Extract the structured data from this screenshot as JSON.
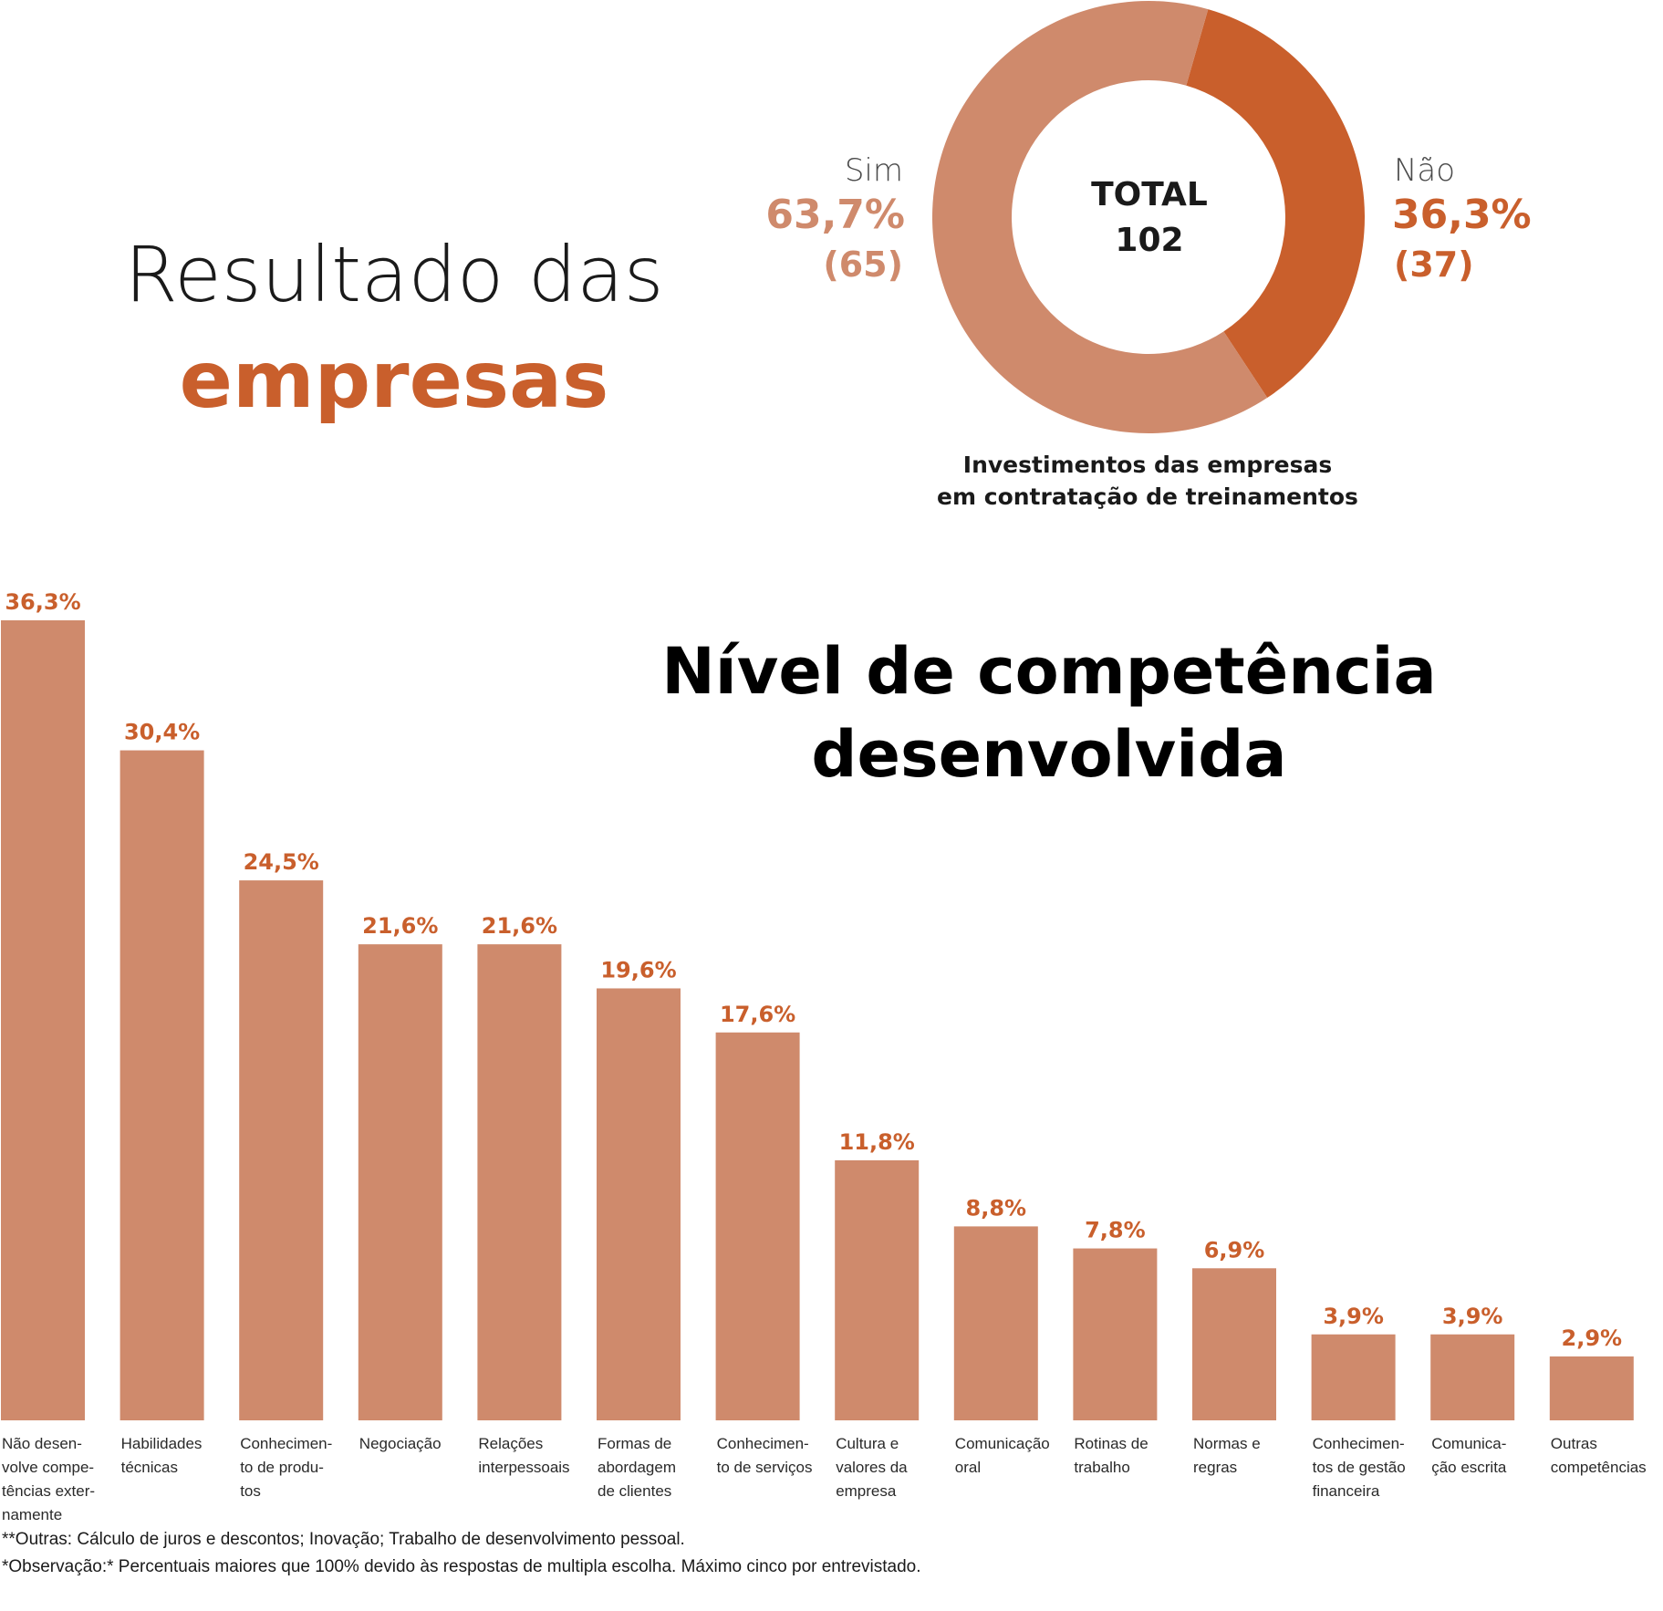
{
  "header": {
    "title_line1": "Resultado das",
    "title_line2": "empresas"
  },
  "donut": {
    "center_label": "TOTAL",
    "center_value": "102",
    "caption_line1": "Investimentos das empresas",
    "caption_line2": "em contratação de treinamentos",
    "colors": {
      "sim": "#cf8a6c",
      "nao": "#c95f2c"
    }
  },
  "bar_chart_heading": {
    "line1": "Nível de competência",
    "line2": "desenvolvida"
  },
  "chart_data": [
    {
      "type": "pie",
      "variant": "donut",
      "title": "Investimentos das empresas em contratação de treinamentos",
      "slices": [
        {
          "label": "Sim",
          "percent": 63.7,
          "percent_label": "63,7%",
          "count": 65,
          "count_label": "(65)",
          "color": "#cf8a6c"
        },
        {
          "label": "Não",
          "percent": 36.3,
          "percent_label": "36,3%",
          "count": 37,
          "count_label": "(37)",
          "color": "#c95f2c"
        }
      ],
      "total": 102
    },
    {
      "type": "bar",
      "title": "Nível de competência desenvolvida",
      "bar_color": "#cf8a6c",
      "label_color": "#c95f2c",
      "ylim": [
        0,
        36.3
      ],
      "categories": [
        [
          "Não desen-",
          "volve compe-",
          "tências exter-",
          "namente"
        ],
        [
          "Habilidades",
          "técnicas"
        ],
        [
          "Conhecimen-",
          "to de produ-",
          "tos"
        ],
        [
          "Negociação"
        ],
        [
          "Relações",
          "interpessoais"
        ],
        [
          "Formas de",
          "abordagem",
          "de clientes"
        ],
        [
          "Conhecimen-",
          "to de serviços"
        ],
        [
          "Cultura e",
          "valores da",
          "empresa"
        ],
        [
          "Comunicação",
          "oral"
        ],
        [
          "Rotinas de",
          "trabalho"
        ],
        [
          "Normas e",
          "regras"
        ],
        [
          "Conhecimen-",
          "tos de gestão",
          "financeira"
        ],
        [
          "Comunica-",
          "ção escrita"
        ],
        [
          "Outras",
          "competências"
        ]
      ],
      "values": [
        36.3,
        30.4,
        24.5,
        21.6,
        21.6,
        19.6,
        17.6,
        11.8,
        8.8,
        7.8,
        6.9,
        3.9,
        3.9,
        2.9
      ],
      "value_labels": [
        "36,3%",
        "30,4%",
        "24,5%",
        "21,6%",
        "21,6%",
        "19,6%",
        "17,6%",
        "11,8%",
        "8,8%",
        "7,8%",
        "6,9%",
        "3,9%",
        "3,9%",
        "2,9%"
      ]
    }
  ],
  "footnotes": {
    "line1": "**Outras: Cálculo de juros e descontos; Inovação; Trabalho de desenvolvimento pessoal.",
    "line2": "*Observação:* Percentuais maiores que 100% devido às respostas de multipla escolha. Máximo cinco por entrevistado."
  }
}
